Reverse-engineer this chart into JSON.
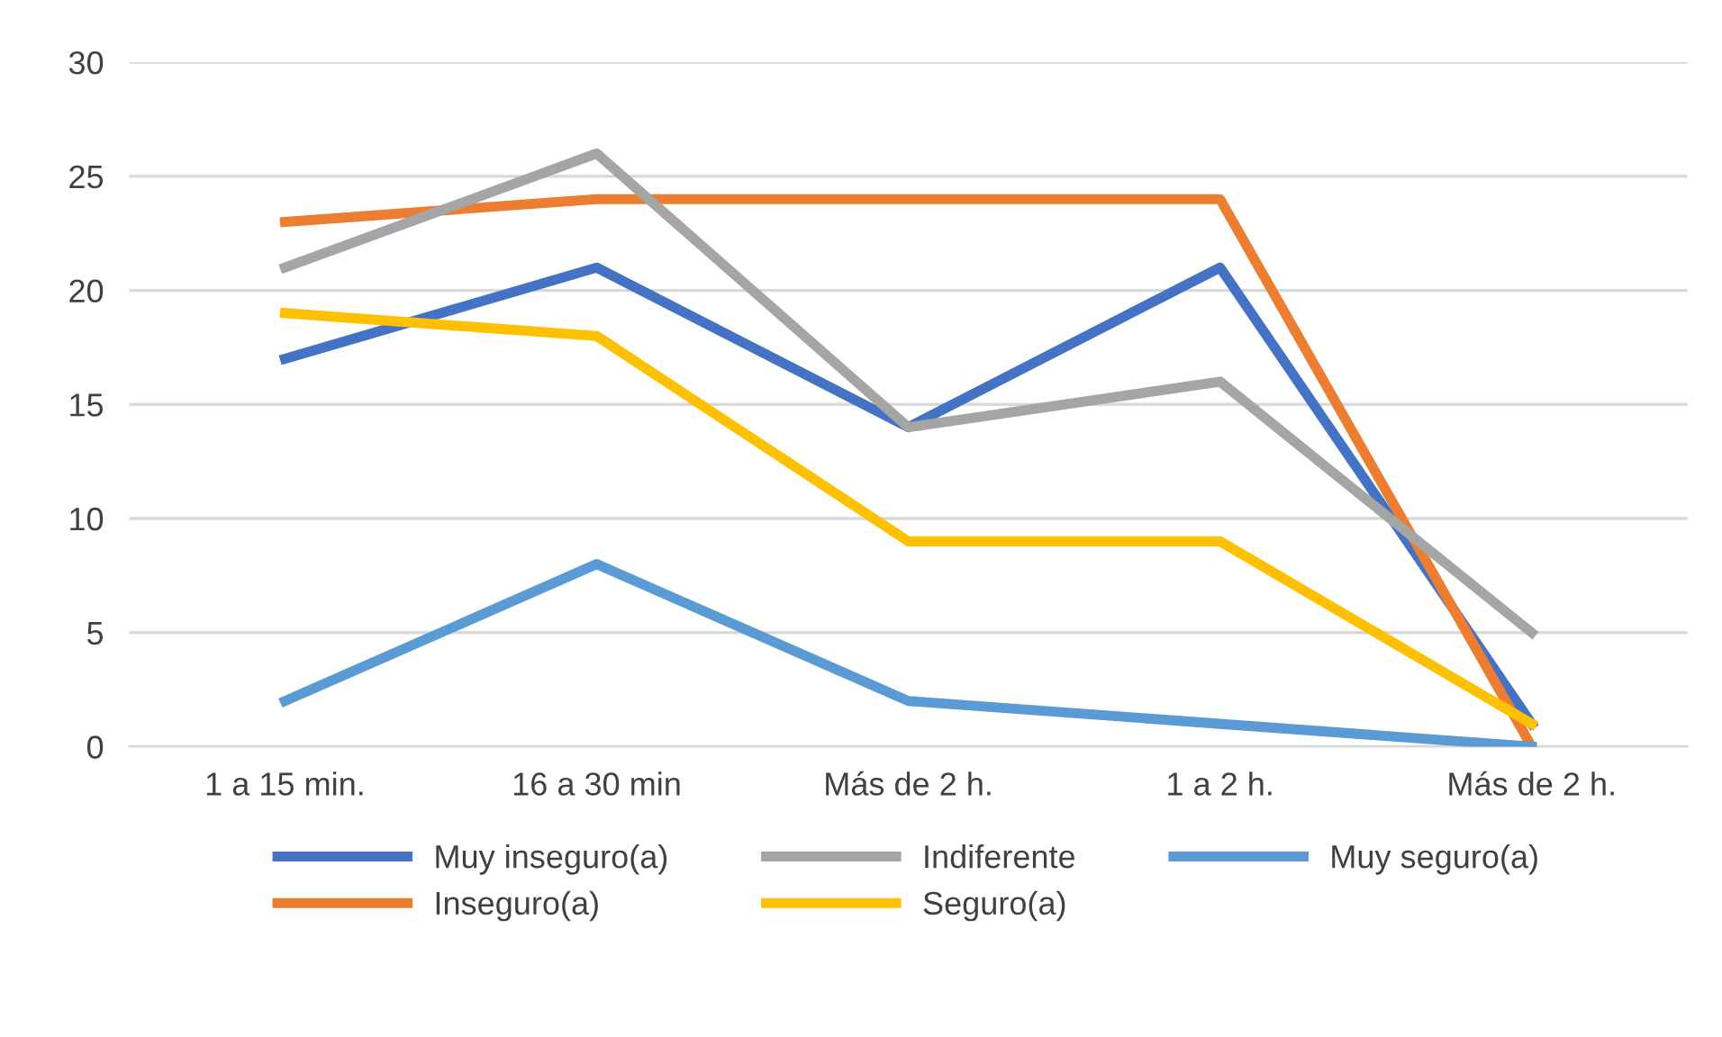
{
  "chart_data": {
    "type": "line",
    "categories": [
      "1 a 15 min.",
      "16 a 30 min",
      "Más de 2 h.",
      "1 a 2 h.",
      "Más de 2 h."
    ],
    "series": [
      {
        "name": "Muy inseguro(a)",
        "color": "#4472c4",
        "values": [
          17,
          21,
          14,
          21,
          1
        ]
      },
      {
        "name": "Inseguro(a)",
        "color": "#ed7d31",
        "values": [
          23,
          24,
          24,
          24,
          0
        ]
      },
      {
        "name": "Indiferente",
        "color": "#a5a5a5",
        "values": [
          21,
          26,
          14,
          16,
          5
        ]
      },
      {
        "name": "Seguro(a)",
        "color": "#ffc000",
        "values": [
          19,
          18,
          9,
          9,
          1
        ]
      },
      {
        "name": "Muy seguro(a)",
        "color": "#5b9bd5",
        "values": [
          2,
          8,
          2,
          1,
          0
        ]
      }
    ],
    "ylim": [
      0,
      30
    ],
    "yticks": [
      0,
      5,
      10,
      15,
      20,
      25,
      30
    ],
    "grid": "y",
    "legend": "bottom",
    "marker": "none",
    "line_style": "solid"
  }
}
